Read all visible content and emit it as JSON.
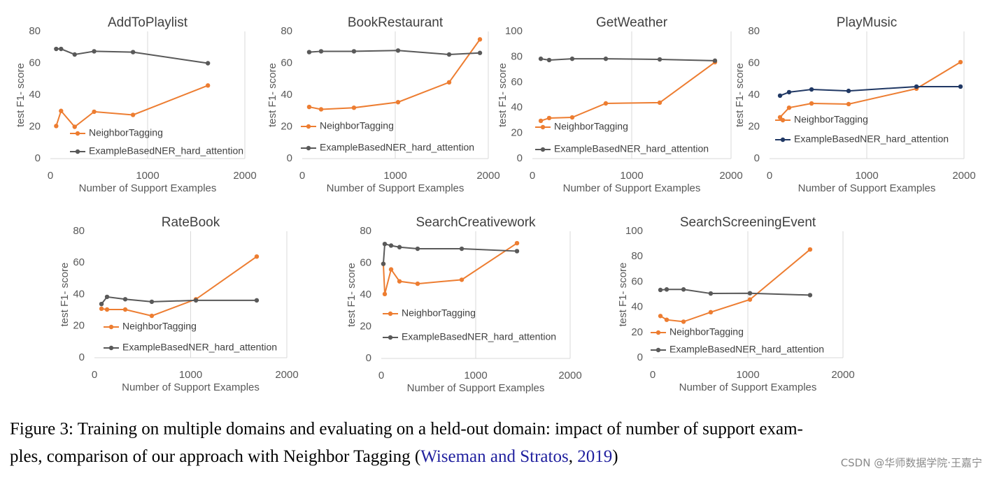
{
  "chart_data": [
    {
      "type": "line",
      "title": "AddToPlaylist",
      "xlabel": "Number of Support Examples",
      "ylabel": "test F1- score",
      "x": [
        60,
        110,
        250,
        450,
        850,
        1620
      ],
      "xlim": [
        0,
        2000
      ],
      "xticks": [
        0,
        1000,
        2000
      ],
      "ylim": [
        0,
        80
      ],
      "yticks": [
        0,
        20,
        40,
        60,
        80
      ],
      "grid": true,
      "series": [
        {
          "name": "NeighborTagging",
          "color": "#ed7d31",
          "values": [
            20.5,
            30,
            20,
            29.5,
            27.5,
            46
          ]
        },
        {
          "name": "ExampleBasedNER_hard_attention",
          "color": "#595959",
          "values": [
            69,
            69,
            65.5,
            67.5,
            67,
            60
          ]
        }
      ]
    },
    {
      "type": "line",
      "title": "BookRestaurant",
      "xlabel": "Number of Support Examples",
      "ylabel": "test F1- score",
      "x": [
        75,
        203,
        556,
        1030,
        1579,
        1910
      ],
      "xlim": [
        0,
        2000
      ],
      "xticks": [
        0,
        1000,
        2000
      ],
      "ylim": [
        0,
        80
      ],
      "yticks": [
        0,
        20,
        40,
        60,
        80
      ],
      "grid": true,
      "series": [
        {
          "name": "NeighborTagging",
          "color": "#ed7d31",
          "values": [
            32.5,
            31,
            32,
            35.5,
            48,
            75
          ]
        },
        {
          "name": "ExampleBasedNER_hard_attention",
          "color": "#595959",
          "values": [
            67,
            67.5,
            67.5,
            68,
            65.5,
            66.5
          ]
        }
      ]
    },
    {
      "type": "line",
      "title": "GetWeather",
      "xlabel": "Number of Support Examples",
      "ylabel": "test F1- score",
      "x": [
        85,
        169,
        401,
        739,
        1282,
        1838
      ],
      "xlim": [
        0,
        2000
      ],
      "xticks": [
        0,
        1000,
        2000
      ],
      "ylim": [
        0,
        100
      ],
      "yticks": [
        0,
        20,
        40,
        60,
        80,
        100
      ],
      "grid": true,
      "series": [
        {
          "name": "NeighborTagging",
          "color": "#ed7d31",
          "values": [
            29.7,
            31.9,
            32.4,
            43.4,
            44,
            75.8
          ]
        },
        {
          "name": "ExampleBasedNER_hard_attention",
          "color": "#595959",
          "values": [
            78.5,
            77.5,
            78.5,
            78.5,
            78,
            77
          ]
        }
      ]
    },
    {
      "type": "line",
      "title": "PlayMusic",
      "xlabel": "Number of Support Examples",
      "ylabel": "test F1- score",
      "x": [
        108,
        201,
        432,
        813,
        1511,
        1964
      ],
      "xlim": [
        0,
        2000
      ],
      "xticks": [
        0,
        1000,
        2000
      ],
      "ylim": [
        0,
        80
      ],
      "yticks": [
        0,
        20,
        40,
        60,
        80
      ],
      "grid": true,
      "series": [
        {
          "name": "NeighborTagging",
          "color": "#ed7d31",
          "values": [
            26,
            32,
            34.7,
            34.3,
            44,
            60.7
          ]
        },
        {
          "name": "ExampleBasedNER_hard_attention",
          "color": "#203864",
          "values": [
            39.6,
            41.8,
            43.5,
            42.6,
            45.3,
            45.3
          ]
        }
      ]
    },
    {
      "type": "line",
      "title": "RateBook",
      "xlabel": "Number of Support Examples",
      "ylabel": "test F1- score",
      "x": [
        73,
        131,
        320,
        596,
        1055,
        1687
      ],
      "xlim": [
        0,
        2000
      ],
      "xticks": [
        0,
        1000,
        2000
      ],
      "ylim": [
        0,
        80
      ],
      "yticks": [
        0,
        20,
        40,
        60,
        80
      ],
      "grid": true,
      "series": [
        {
          "name": "NeighborTagging",
          "color": "#ed7d31",
          "values": [
            31,
            30.5,
            30.5,
            26.5,
            37,
            64
          ]
        },
        {
          "name": "ExampleBasedNER_hard_attention",
          "color": "#595959",
          "values": [
            34,
            38.5,
            37,
            35.4,
            36.3,
            36.3
          ]
        }
      ]
    },
    {
      "type": "line",
      "title": "SearchCreativework",
      "xlabel": "Number of Support Examples",
      "ylabel": "test F1- score",
      "x": [
        22,
        37,
        104,
        193,
        385,
        852,
        1437
      ],
      "xlim": [
        0,
        2000
      ],
      "xticks": [
        0,
        1000,
        2000
      ],
      "ylim": [
        0,
        80
      ],
      "yticks": [
        0,
        20,
        40,
        60,
        80
      ],
      "grid": true,
      "series": [
        {
          "name": "NeighborTagging",
          "color": "#ed7d31",
          "values": [
            59.5,
            40.5,
            56,
            48.5,
            47,
            49.5,
            72.5
          ]
        },
        {
          "name": "ExampleBasedNER_hard_attention",
          "color": "#595959",
          "values": [
            59.5,
            72,
            71,
            70,
            69,
            69,
            67.5
          ]
        }
      ]
    },
    {
      "type": "line",
      "title": "SearchScreeningEvent",
      "xlabel": "Number of Support Examples",
      "ylabel": "test F1- score",
      "x": [
        81,
        147,
        324,
        610,
        1022,
        1654
      ],
      "xlim": [
        0,
        2000
      ],
      "xticks": [
        0,
        1000,
        2000
      ],
      "ylim": [
        0,
        100
      ],
      "yticks": [
        0,
        20,
        40,
        60,
        80,
        100
      ],
      "grid": true,
      "series": [
        {
          "name": "NeighborTagging",
          "color": "#ed7d31",
          "values": [
            33,
            30,
            28.5,
            36,
            46,
            85.6
          ]
        },
        {
          "name": "ExampleBasedNER_hard_attention",
          "color": "#595959",
          "values": [
            53.6,
            54,
            54,
            50.8,
            51,
            49.5
          ]
        }
      ]
    }
  ],
  "caption": {
    "line1": "Figure 3: Training on multiple domains and evaluating on a held-out domain: impact of number of support exam-",
    "line2_start": "ples, comparison of our approach with Neighbor Tagging (",
    "cite_author": "Wiseman and Stratos",
    "cite_sep": ", ",
    "cite_year": "2019",
    "line2_end": ")"
  },
  "watermark": "CSDN @华师数据学院·王嘉宁"
}
